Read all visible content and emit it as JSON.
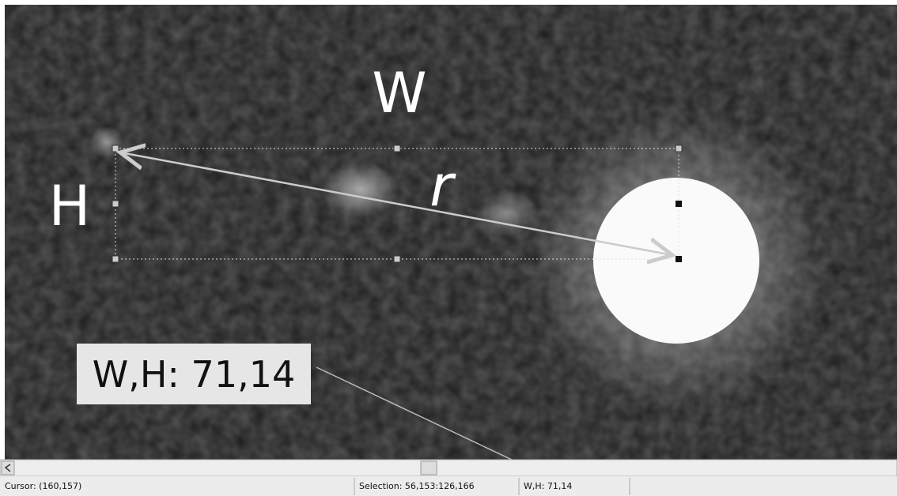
{
  "image_labels": {
    "width": "W",
    "height": "H",
    "distance": "r"
  },
  "callout": "W,H: 71,14",
  "status_bar": {
    "cursor": "Cursor: (160,157)",
    "selection": "Selection: 56,153:126,166",
    "size": "W,H: 71,14"
  }
}
